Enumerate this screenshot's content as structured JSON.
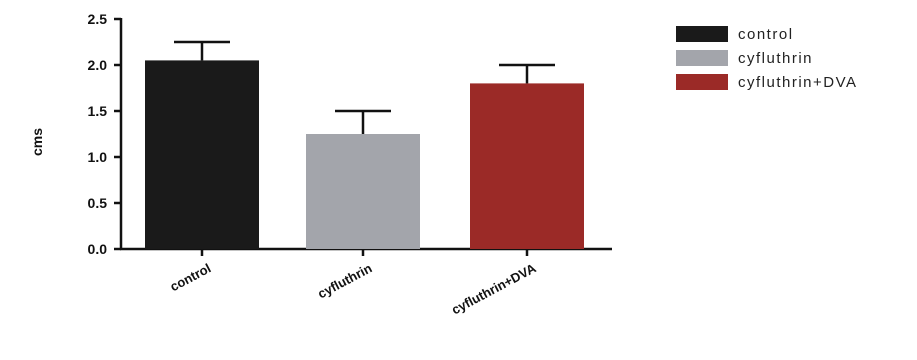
{
  "chart_data": {
    "type": "bar",
    "categories": [
      "control",
      "cyfluthrin",
      "cyfluthrin+DVA"
    ],
    "values": [
      2.05,
      1.25,
      1.8
    ],
    "error_bars": [
      0.2,
      0.25,
      0.2
    ],
    "colors": [
      "#1a1a1a",
      "#a3a5ab",
      "#9b2a27"
    ],
    "ylabel": "cms",
    "ylim": [
      0,
      2.5
    ],
    "yticks": [
      "0.0",
      "0.5",
      "1.0",
      "1.5",
      "2.0",
      "2.5"
    ],
    "legend": {
      "position": "top-right",
      "entries": [
        "control",
        "cyfluthrin",
        "cyfluthrin+DVA"
      ]
    },
    "grid": false
  }
}
